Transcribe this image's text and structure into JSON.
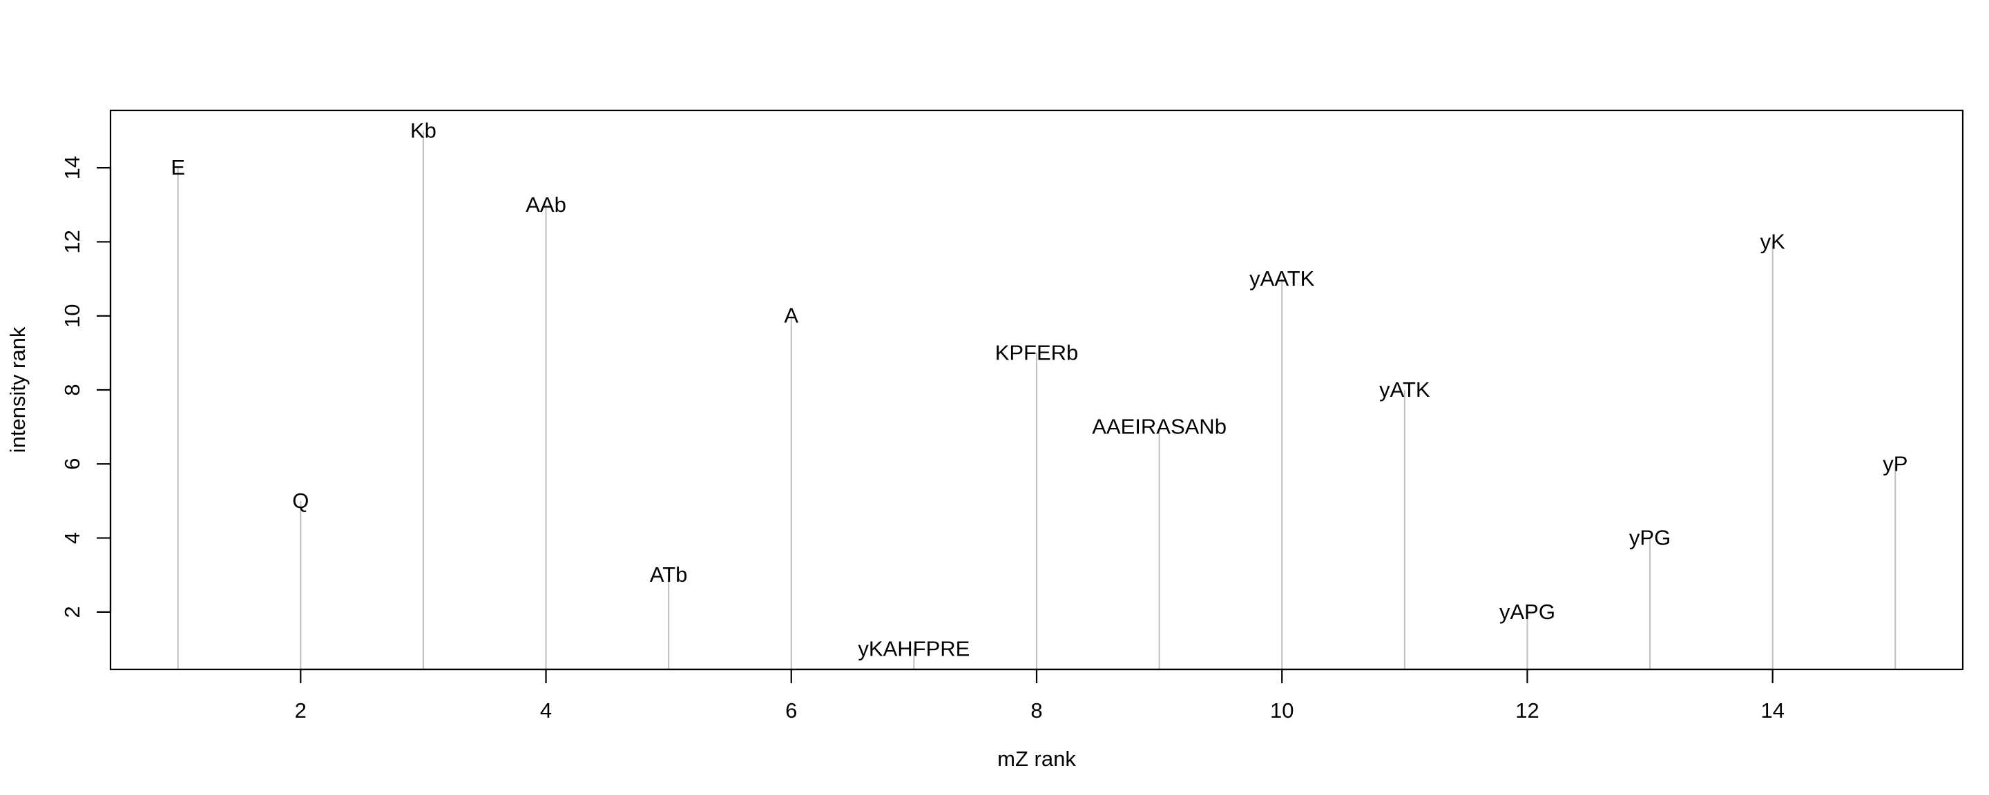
{
  "chart_data": {
    "type": "bar",
    "title": "",
    "xlabel": "mZ rank",
    "ylabel": "intensity rank",
    "xlim": [
      0.45,
      15.55
    ],
    "ylim": [
      0.45,
      15.55
    ],
    "xticks": [
      "2",
      "4",
      "6",
      "8",
      "10",
      "12",
      "14"
    ],
    "yticks": [
      "2",
      "4",
      "6",
      "8",
      "10",
      "12",
      "14"
    ],
    "grid": false,
    "line_color": "#bebebe",
    "points": [
      {
        "x": 1,
        "y": 14,
        "label": "E"
      },
      {
        "x": 2,
        "y": 5,
        "label": "Q"
      },
      {
        "x": 3,
        "y": 15,
        "label": "Kb"
      },
      {
        "x": 4,
        "y": 13,
        "label": "AAb"
      },
      {
        "x": 5,
        "y": 3,
        "label": "ATb"
      },
      {
        "x": 6,
        "y": 10,
        "label": "A"
      },
      {
        "x": 7,
        "y": 1,
        "label": "yKAHFPRE"
      },
      {
        "x": 8,
        "y": 9,
        "label": "KPFERb"
      },
      {
        "x": 9,
        "y": 7,
        "label": "AAEIRASANb"
      },
      {
        "x": 10,
        "y": 11,
        "label": "yAATK"
      },
      {
        "x": 11,
        "y": 8,
        "label": "yATK"
      },
      {
        "x": 12,
        "y": 2,
        "label": "yAPG"
      },
      {
        "x": 13,
        "y": 4,
        "label": "yPG"
      },
      {
        "x": 14,
        "y": 12,
        "label": "yK"
      },
      {
        "x": 15,
        "y": 6,
        "label": "yP"
      }
    ]
  }
}
